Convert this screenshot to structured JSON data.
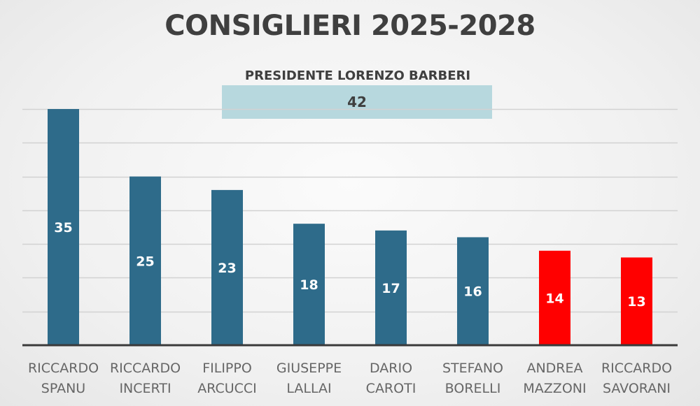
{
  "colors": {
    "accent": "#2e6b8a",
    "highlight": "#ff0000",
    "president_box": "#b7d8de",
    "text": "#3f3f3f"
  },
  "chart_data": {
    "type": "bar",
    "title": "CONSIGLIERI 2025-2028",
    "president": {
      "label": "PRESIDENTE LORENZO BARBERI",
      "value": 42
    },
    "categories": [
      [
        "RICCARDO",
        "SPANU"
      ],
      [
        "RICCARDO",
        "INCERTI"
      ],
      [
        "FILIPPO",
        "ARCUCCI"
      ],
      [
        "GIUSEPPE",
        "LALLAI"
      ],
      [
        "DARIO",
        "CAROTI"
      ],
      [
        "STEFANO",
        "BORELLI"
      ],
      [
        "ANDREA",
        "MAZZONI"
      ],
      [
        "RICCARDO",
        "SAVORANI"
      ]
    ],
    "values": [
      35,
      25,
      23,
      18,
      17,
      16,
      14,
      13
    ],
    "bar_colors": [
      "#2e6b8a",
      "#2e6b8a",
      "#2e6b8a",
      "#2e6b8a",
      "#2e6b8a",
      "#2e6b8a",
      "#ff0000",
      "#ff0000"
    ],
    "ylim": [
      0,
      35
    ],
    "grid": true,
    "xlabel": "",
    "ylabel": ""
  }
}
